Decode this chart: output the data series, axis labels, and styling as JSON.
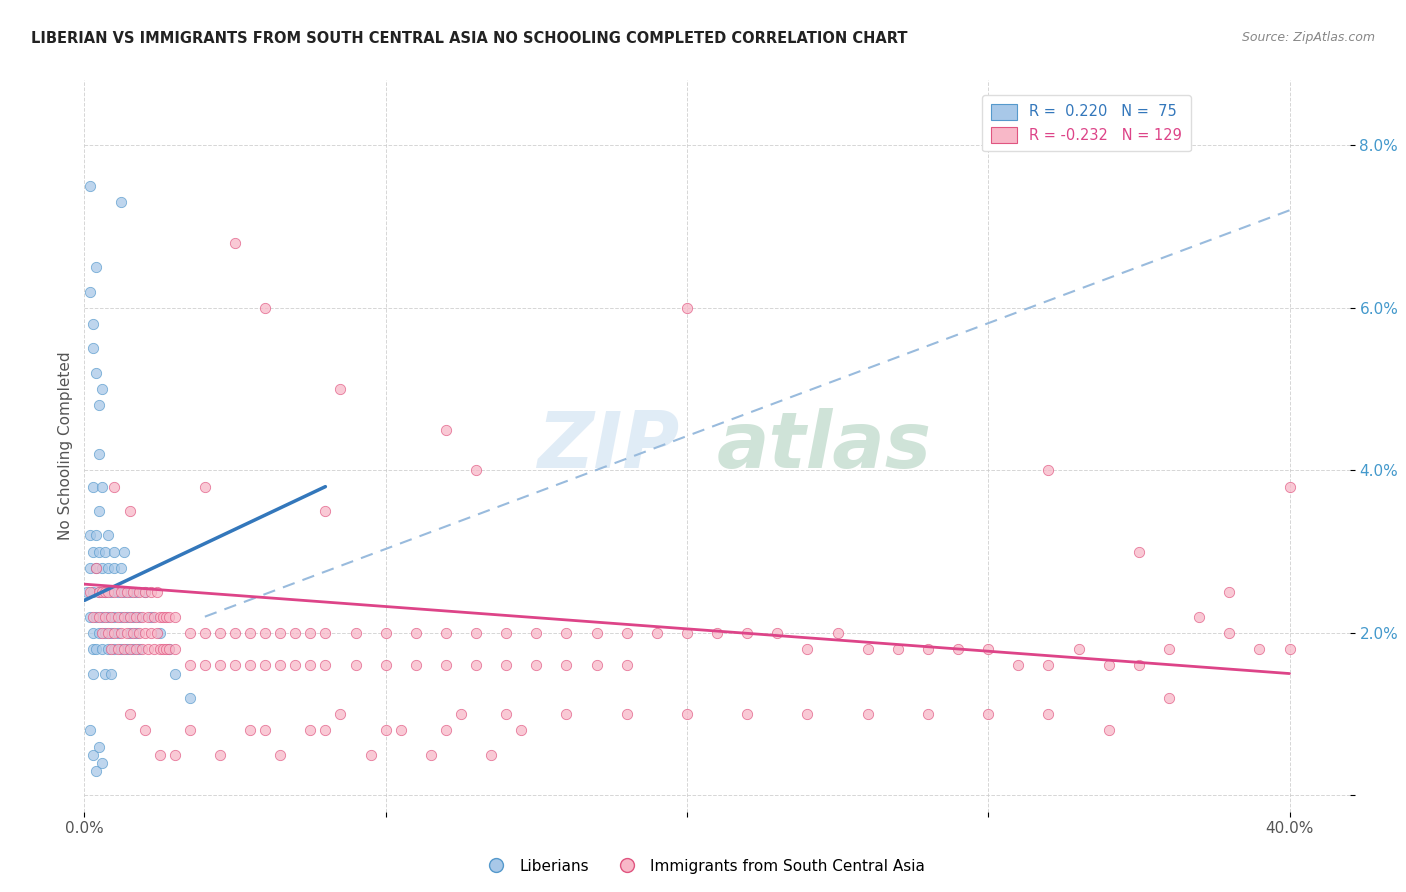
{
  "title": "LIBERIAN VS IMMIGRANTS FROM SOUTH CENTRAL ASIA NO SCHOOLING COMPLETED CORRELATION CHART",
  "source": "Source: ZipAtlas.com",
  "ylabel": "No Schooling Completed",
  "xlim": [
    0.0,
    0.42
  ],
  "ylim": [
    -0.002,
    0.088
  ],
  "yticks": [
    0.0,
    0.02,
    0.04,
    0.06,
    0.08
  ],
  "ytick_labels": [
    "",
    "2.0%",
    "4.0%",
    "6.0%",
    "8.0%"
  ],
  "xticks": [
    0.0,
    0.1,
    0.2,
    0.3,
    0.4
  ],
  "xtick_labels": [
    "0.0%",
    "",
    "",
    "",
    "40.0%"
  ],
  "color_blue": "#a8c8e8",
  "color_pink": "#f8b8c8",
  "edge_blue": "#5599cc",
  "edge_pink": "#e05580",
  "trend_blue": "#3377bb",
  "trend_pink": "#dd4488",
  "trend_dashed_color": "#99bbdd",
  "watermark": "ZIPatlas",
  "blue_line_x": [
    0.0,
    0.08
  ],
  "blue_line_y": [
    0.024,
    0.038
  ],
  "pink_line_x": [
    0.0,
    0.4
  ],
  "pink_line_y": [
    0.026,
    0.015
  ],
  "dashed_line_x": [
    0.04,
    0.4
  ],
  "dashed_line_y": [
    0.022,
    0.072
  ],
  "blue_scatter": [
    [
      0.001,
      0.025
    ],
    [
      0.002,
      0.022
    ],
    [
      0.002,
      0.028
    ],
    [
      0.002,
      0.032
    ],
    [
      0.003,
      0.038
    ],
    [
      0.003,
      0.03
    ],
    [
      0.003,
      0.025
    ],
    [
      0.003,
      0.02
    ],
    [
      0.003,
      0.018
    ],
    [
      0.003,
      0.015
    ],
    [
      0.004,
      0.028
    ],
    [
      0.004,
      0.022
    ],
    [
      0.004,
      0.018
    ],
    [
      0.004,
      0.032
    ],
    [
      0.005,
      0.025
    ],
    [
      0.005,
      0.02
    ],
    [
      0.005,
      0.03
    ],
    [
      0.005,
      0.035
    ],
    [
      0.006,
      0.028
    ],
    [
      0.006,
      0.022
    ],
    [
      0.006,
      0.038
    ],
    [
      0.006,
      0.018
    ],
    [
      0.007,
      0.025
    ],
    [
      0.007,
      0.03
    ],
    [
      0.007,
      0.02
    ],
    [
      0.007,
      0.015
    ],
    [
      0.008,
      0.028
    ],
    [
      0.008,
      0.022
    ],
    [
      0.008,
      0.018
    ],
    [
      0.008,
      0.032
    ],
    [
      0.009,
      0.025
    ],
    [
      0.009,
      0.02
    ],
    [
      0.009,
      0.015
    ],
    [
      0.01,
      0.028
    ],
    [
      0.01,
      0.022
    ],
    [
      0.01,
      0.018
    ],
    [
      0.01,
      0.03
    ],
    [
      0.011,
      0.025
    ],
    [
      0.011,
      0.02
    ],
    [
      0.012,
      0.022
    ],
    [
      0.012,
      0.018
    ],
    [
      0.012,
      0.028
    ],
    [
      0.013,
      0.025
    ],
    [
      0.013,
      0.03
    ],
    [
      0.014,
      0.022
    ],
    [
      0.014,
      0.018
    ],
    [
      0.015,
      0.025
    ],
    [
      0.015,
      0.02
    ],
    [
      0.016,
      0.022
    ],
    [
      0.016,
      0.018
    ],
    [
      0.017,
      0.025
    ],
    [
      0.017,
      0.02
    ],
    [
      0.018,
      0.022
    ],
    [
      0.018,
      0.018
    ],
    [
      0.02,
      0.025
    ],
    [
      0.022,
      0.022
    ],
    [
      0.025,
      0.02
    ],
    [
      0.028,
      0.018
    ],
    [
      0.03,
      0.015
    ],
    [
      0.035,
      0.012
    ],
    [
      0.002,
      0.062
    ],
    [
      0.003,
      0.058
    ],
    [
      0.003,
      0.055
    ],
    [
      0.004,
      0.065
    ],
    [
      0.004,
      0.052
    ],
    [
      0.005,
      0.048
    ],
    [
      0.005,
      0.042
    ],
    [
      0.006,
      0.05
    ],
    [
      0.002,
      0.075
    ],
    [
      0.012,
      0.073
    ],
    [
      0.002,
      0.008
    ],
    [
      0.003,
      0.005
    ],
    [
      0.004,
      0.003
    ],
    [
      0.005,
      0.006
    ],
    [
      0.006,
      0.004
    ]
  ],
  "pink_scatter": [
    [
      0.002,
      0.025
    ],
    [
      0.003,
      0.022
    ],
    [
      0.004,
      0.028
    ],
    [
      0.005,
      0.025
    ],
    [
      0.005,
      0.022
    ],
    [
      0.006,
      0.025
    ],
    [
      0.006,
      0.02
    ],
    [
      0.007,
      0.025
    ],
    [
      0.007,
      0.022
    ],
    [
      0.008,
      0.025
    ],
    [
      0.008,
      0.02
    ],
    [
      0.009,
      0.022
    ],
    [
      0.009,
      0.018
    ],
    [
      0.01,
      0.025
    ],
    [
      0.01,
      0.02
    ],
    [
      0.011,
      0.022
    ],
    [
      0.011,
      0.018
    ],
    [
      0.012,
      0.025
    ],
    [
      0.012,
      0.02
    ],
    [
      0.013,
      0.022
    ],
    [
      0.013,
      0.018
    ],
    [
      0.014,
      0.025
    ],
    [
      0.014,
      0.02
    ],
    [
      0.015,
      0.022
    ],
    [
      0.015,
      0.018
    ],
    [
      0.016,
      0.025
    ],
    [
      0.016,
      0.02
    ],
    [
      0.017,
      0.022
    ],
    [
      0.017,
      0.018
    ],
    [
      0.018,
      0.025
    ],
    [
      0.018,
      0.02
    ],
    [
      0.019,
      0.022
    ],
    [
      0.019,
      0.018
    ],
    [
      0.02,
      0.025
    ],
    [
      0.02,
      0.02
    ],
    [
      0.021,
      0.022
    ],
    [
      0.021,
      0.018
    ],
    [
      0.022,
      0.025
    ],
    [
      0.022,
      0.02
    ],
    [
      0.023,
      0.022
    ],
    [
      0.023,
      0.018
    ],
    [
      0.024,
      0.025
    ],
    [
      0.024,
      0.02
    ],
    [
      0.025,
      0.022
    ],
    [
      0.025,
      0.018
    ],
    [
      0.026,
      0.022
    ],
    [
      0.026,
      0.018
    ],
    [
      0.027,
      0.022
    ],
    [
      0.027,
      0.018
    ],
    [
      0.028,
      0.022
    ],
    [
      0.028,
      0.018
    ],
    [
      0.03,
      0.022
    ],
    [
      0.03,
      0.018
    ],
    [
      0.035,
      0.02
    ],
    [
      0.035,
      0.016
    ],
    [
      0.04,
      0.02
    ],
    [
      0.04,
      0.016
    ],
    [
      0.045,
      0.02
    ],
    [
      0.045,
      0.016
    ],
    [
      0.05,
      0.02
    ],
    [
      0.05,
      0.016
    ],
    [
      0.055,
      0.02
    ],
    [
      0.055,
      0.016
    ],
    [
      0.06,
      0.02
    ],
    [
      0.06,
      0.016
    ],
    [
      0.065,
      0.02
    ],
    [
      0.065,
      0.016
    ],
    [
      0.07,
      0.02
    ],
    [
      0.07,
      0.016
    ],
    [
      0.075,
      0.02
    ],
    [
      0.075,
      0.016
    ],
    [
      0.08,
      0.02
    ],
    [
      0.08,
      0.016
    ],
    [
      0.09,
      0.02
    ],
    [
      0.09,
      0.016
    ],
    [
      0.1,
      0.02
    ],
    [
      0.1,
      0.016
    ],
    [
      0.11,
      0.02
    ],
    [
      0.11,
      0.016
    ],
    [
      0.12,
      0.02
    ],
    [
      0.12,
      0.016
    ],
    [
      0.13,
      0.02
    ],
    [
      0.13,
      0.016
    ],
    [
      0.14,
      0.02
    ],
    [
      0.14,
      0.016
    ],
    [
      0.15,
      0.02
    ],
    [
      0.15,
      0.016
    ],
    [
      0.16,
      0.02
    ],
    [
      0.16,
      0.016
    ],
    [
      0.17,
      0.02
    ],
    [
      0.17,
      0.016
    ],
    [
      0.18,
      0.02
    ],
    [
      0.18,
      0.016
    ],
    [
      0.19,
      0.02
    ],
    [
      0.2,
      0.02
    ],
    [
      0.21,
      0.02
    ],
    [
      0.22,
      0.02
    ],
    [
      0.23,
      0.02
    ],
    [
      0.24,
      0.018
    ],
    [
      0.25,
      0.02
    ],
    [
      0.26,
      0.018
    ],
    [
      0.27,
      0.018
    ],
    [
      0.28,
      0.018
    ],
    [
      0.29,
      0.018
    ],
    [
      0.3,
      0.018
    ],
    [
      0.31,
      0.016
    ],
    [
      0.32,
      0.016
    ],
    [
      0.33,
      0.018
    ],
    [
      0.34,
      0.016
    ],
    [
      0.35,
      0.016
    ],
    [
      0.36,
      0.018
    ],
    [
      0.37,
      0.022
    ],
    [
      0.38,
      0.02
    ],
    [
      0.39,
      0.018
    ],
    [
      0.4,
      0.018
    ],
    [
      0.05,
      0.068
    ],
    [
      0.06,
      0.06
    ],
    [
      0.12,
      0.045
    ],
    [
      0.13,
      0.04
    ],
    [
      0.2,
      0.06
    ],
    [
      0.32,
      0.04
    ],
    [
      0.35,
      0.03
    ],
    [
      0.085,
      0.05
    ],
    [
      0.01,
      0.038
    ],
    [
      0.015,
      0.035
    ],
    [
      0.04,
      0.038
    ],
    [
      0.08,
      0.035
    ],
    [
      0.015,
      0.01
    ],
    [
      0.02,
      0.008
    ],
    [
      0.025,
      0.005
    ],
    [
      0.03,
      0.005
    ],
    [
      0.035,
      0.008
    ],
    [
      0.045,
      0.005
    ],
    [
      0.055,
      0.008
    ],
    [
      0.065,
      0.005
    ],
    [
      0.075,
      0.008
    ],
    [
      0.085,
      0.01
    ],
    [
      0.095,
      0.005
    ],
    [
      0.105,
      0.008
    ],
    [
      0.115,
      0.005
    ],
    [
      0.125,
      0.01
    ],
    [
      0.135,
      0.005
    ],
    [
      0.145,
      0.008
    ],
    [
      0.4,
      0.038
    ],
    [
      0.38,
      0.025
    ],
    [
      0.36,
      0.012
    ],
    [
      0.34,
      0.008
    ],
    [
      0.32,
      0.01
    ],
    [
      0.3,
      0.01
    ],
    [
      0.28,
      0.01
    ],
    [
      0.26,
      0.01
    ],
    [
      0.24,
      0.01
    ],
    [
      0.22,
      0.01
    ],
    [
      0.2,
      0.01
    ],
    [
      0.18,
      0.01
    ],
    [
      0.16,
      0.01
    ],
    [
      0.14,
      0.01
    ],
    [
      0.12,
      0.008
    ],
    [
      0.1,
      0.008
    ],
    [
      0.08,
      0.008
    ],
    [
      0.06,
      0.008
    ]
  ]
}
